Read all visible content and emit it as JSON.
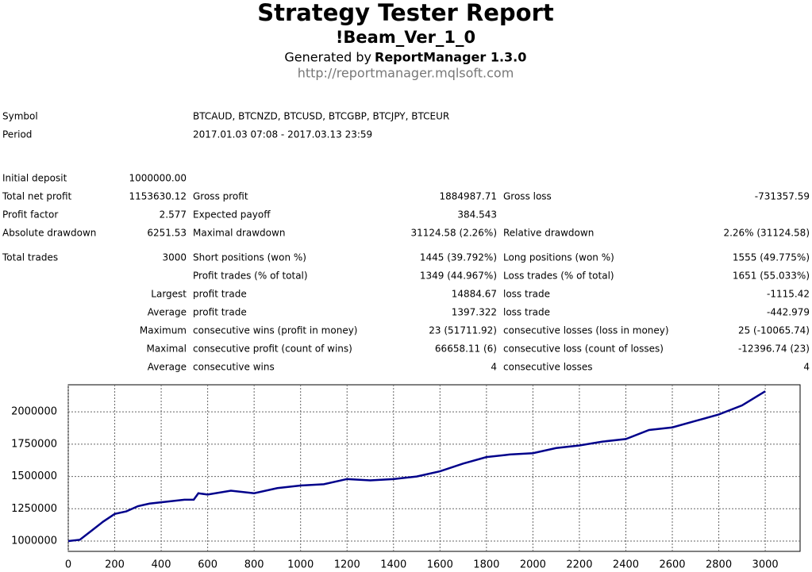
{
  "header": {
    "title": "Strategy Tester Report",
    "subtitle": "!Beam_Ver_1_0",
    "generated_prefix": "Generated by",
    "generator": "ReportManager 1.3.0",
    "url": "http://reportmanager.mqlsoft.com"
  },
  "info": {
    "rows": [
      [
        "Symbol",
        "BTCAUD, BTCNZD, BTCUSD, BTCGBP, BTCJPY, BTCEUR"
      ],
      [
        "Period",
        "2017.01.03 07:08 - 2017.03.13 23:59"
      ]
    ]
  },
  "stats": {
    "rows": [
      [
        "Initial deposit",
        "1000000.00",
        null,
        null,
        null,
        null
      ],
      [
        "Total net profit",
        "1153630.12",
        "Gross profit",
        "1884987.71",
        "Gross loss",
        "-731357.59"
      ],
      [
        "Profit factor",
        "2.577",
        "Expected payoff",
        "384.543",
        null,
        null
      ],
      [
        "Absolute drawdown",
        "6251.53",
        "Maximal drawdown",
        "31124.58 (2.26%)",
        "Relative drawdown",
        "2.26% (31124.58)"
      ],
      [
        "Total trades",
        "3000",
        "Short positions (won %)",
        "1445 (39.792%)",
        "Long positions (won %)",
        "1555 (49.775%)"
      ],
      [
        null,
        null,
        "Profit trades (% of total)",
        "1349 (44.967%)",
        "Loss trades (% of total)",
        "1651 (55.033%)"
      ],
      [
        null,
        "Largest",
        "profit trade",
        "14884.67",
        "loss trade",
        "-1115.42"
      ],
      [
        null,
        "Average",
        "profit trade",
        "1397.322",
        "loss trade",
        "-442.979"
      ],
      [
        null,
        "Maximum",
        "consecutive wins (profit in money)",
        "23 (51711.92)",
        "consecutive losses (loss in money)",
        "25 (-10065.74)"
      ],
      [
        null,
        "Maximal",
        "consecutive profit (count of wins)",
        "66658.11 (6)",
        "consecutive loss (count of losses)",
        "-12396.74 (23)"
      ],
      [
        null,
        "Average",
        "consecutive wins",
        "4",
        "consecutive losses",
        "4"
      ]
    ]
  },
  "chart_data": {
    "type": "line",
    "color": "#00008b",
    "grid": true,
    "x": [
      0,
      50,
      100,
      150,
      200,
      250,
      300,
      350,
      400,
      450,
      500,
      540,
      560,
      600,
      700,
      800,
      900,
      1000,
      1100,
      1200,
      1300,
      1400,
      1500,
      1600,
      1700,
      1800,
      1900,
      2000,
      2100,
      2200,
      2300,
      2400,
      2500,
      2600,
      2700,
      2800,
      2900,
      3000
    ],
    "values": [
      1000000,
      1010000,
      1080000,
      1150000,
      1210000,
      1230000,
      1270000,
      1290000,
      1300000,
      1310000,
      1320000,
      1320000,
      1370000,
      1360000,
      1390000,
      1370000,
      1410000,
      1430000,
      1440000,
      1480000,
      1470000,
      1480000,
      1500000,
      1540000,
      1600000,
      1650000,
      1670000,
      1680000,
      1720000,
      1740000,
      1770000,
      1790000,
      1860000,
      1880000,
      1930000,
      1980000,
      2050000,
      2160000
    ],
    "xlim": [
      0,
      3150
    ],
    "ylim": [
      920000,
      2210000
    ],
    "xticks": [
      0,
      200,
      400,
      600,
      800,
      1000,
      1200,
      1400,
      1600,
      1800,
      2000,
      2200,
      2400,
      2600,
      2800,
      3000
    ],
    "yticks": [
      1000000,
      1250000,
      1500000,
      1750000,
      2000000
    ]
  }
}
